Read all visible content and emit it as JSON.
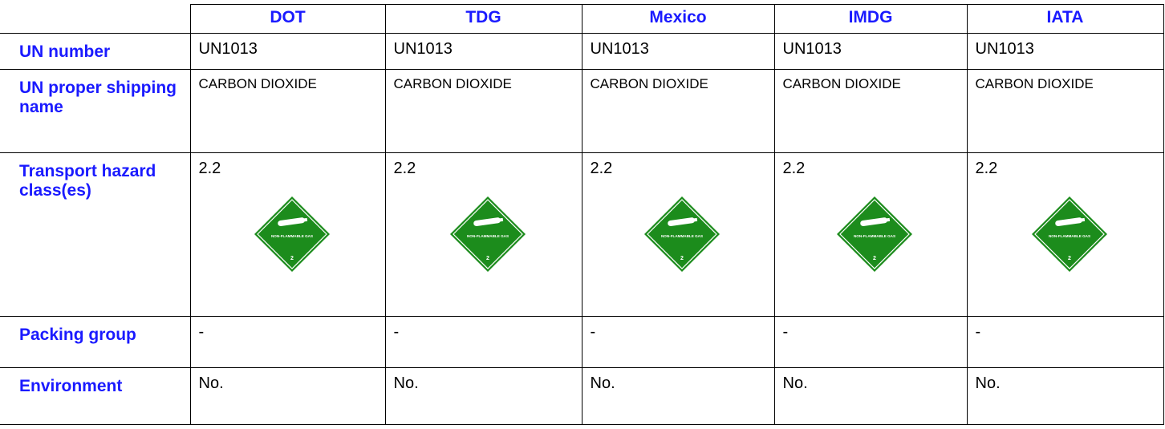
{
  "table": {
    "header": [
      "DOT",
      "TDG",
      "Mexico",
      "IMDG",
      "IATA"
    ],
    "rows": [
      {
        "label": "UN number",
        "cells": [
          "UN1013",
          "UN1013",
          "UN1013",
          "UN1013",
          "UN1013"
        ]
      },
      {
        "label": "UN proper shipping name",
        "cells": [
          "CARBON DIOXIDE",
          "CARBON DIOXIDE",
          "CARBON DIOXIDE",
          "CARBON DIOXIDE",
          "CARBON DIOXIDE"
        ]
      },
      {
        "label": "Transport hazard class(es)",
        "cells": [
          {
            "text": "2.2",
            "placard": {
              "label": "NON-FLAMMABLE GAS",
              "number": "2"
            }
          },
          {
            "text": "2.2",
            "placard": {
              "label": "NON-FLAMMABLE GAS",
              "number": "2"
            }
          },
          {
            "text": "2.2",
            "placard": {
              "label": "NON-FLAMMABLE GAS",
              "number": "2"
            }
          },
          {
            "text": "2.2",
            "placard": {
              "label": "NON-FLAMMABLE GAS",
              "number": "2"
            }
          },
          {
            "text": "2.2",
            "placard": {
              "label": "NON-FLAMMABLE GAS",
              "number": "2"
            }
          }
        ]
      },
      {
        "label": "Packing group",
        "cells": [
          "-",
          "-",
          "-",
          "-",
          "-"
        ]
      },
      {
        "label": "Environment",
        "cells": [
          "No.",
          "No.",
          "No.",
          "No.",
          "No."
        ]
      }
    ]
  }
}
